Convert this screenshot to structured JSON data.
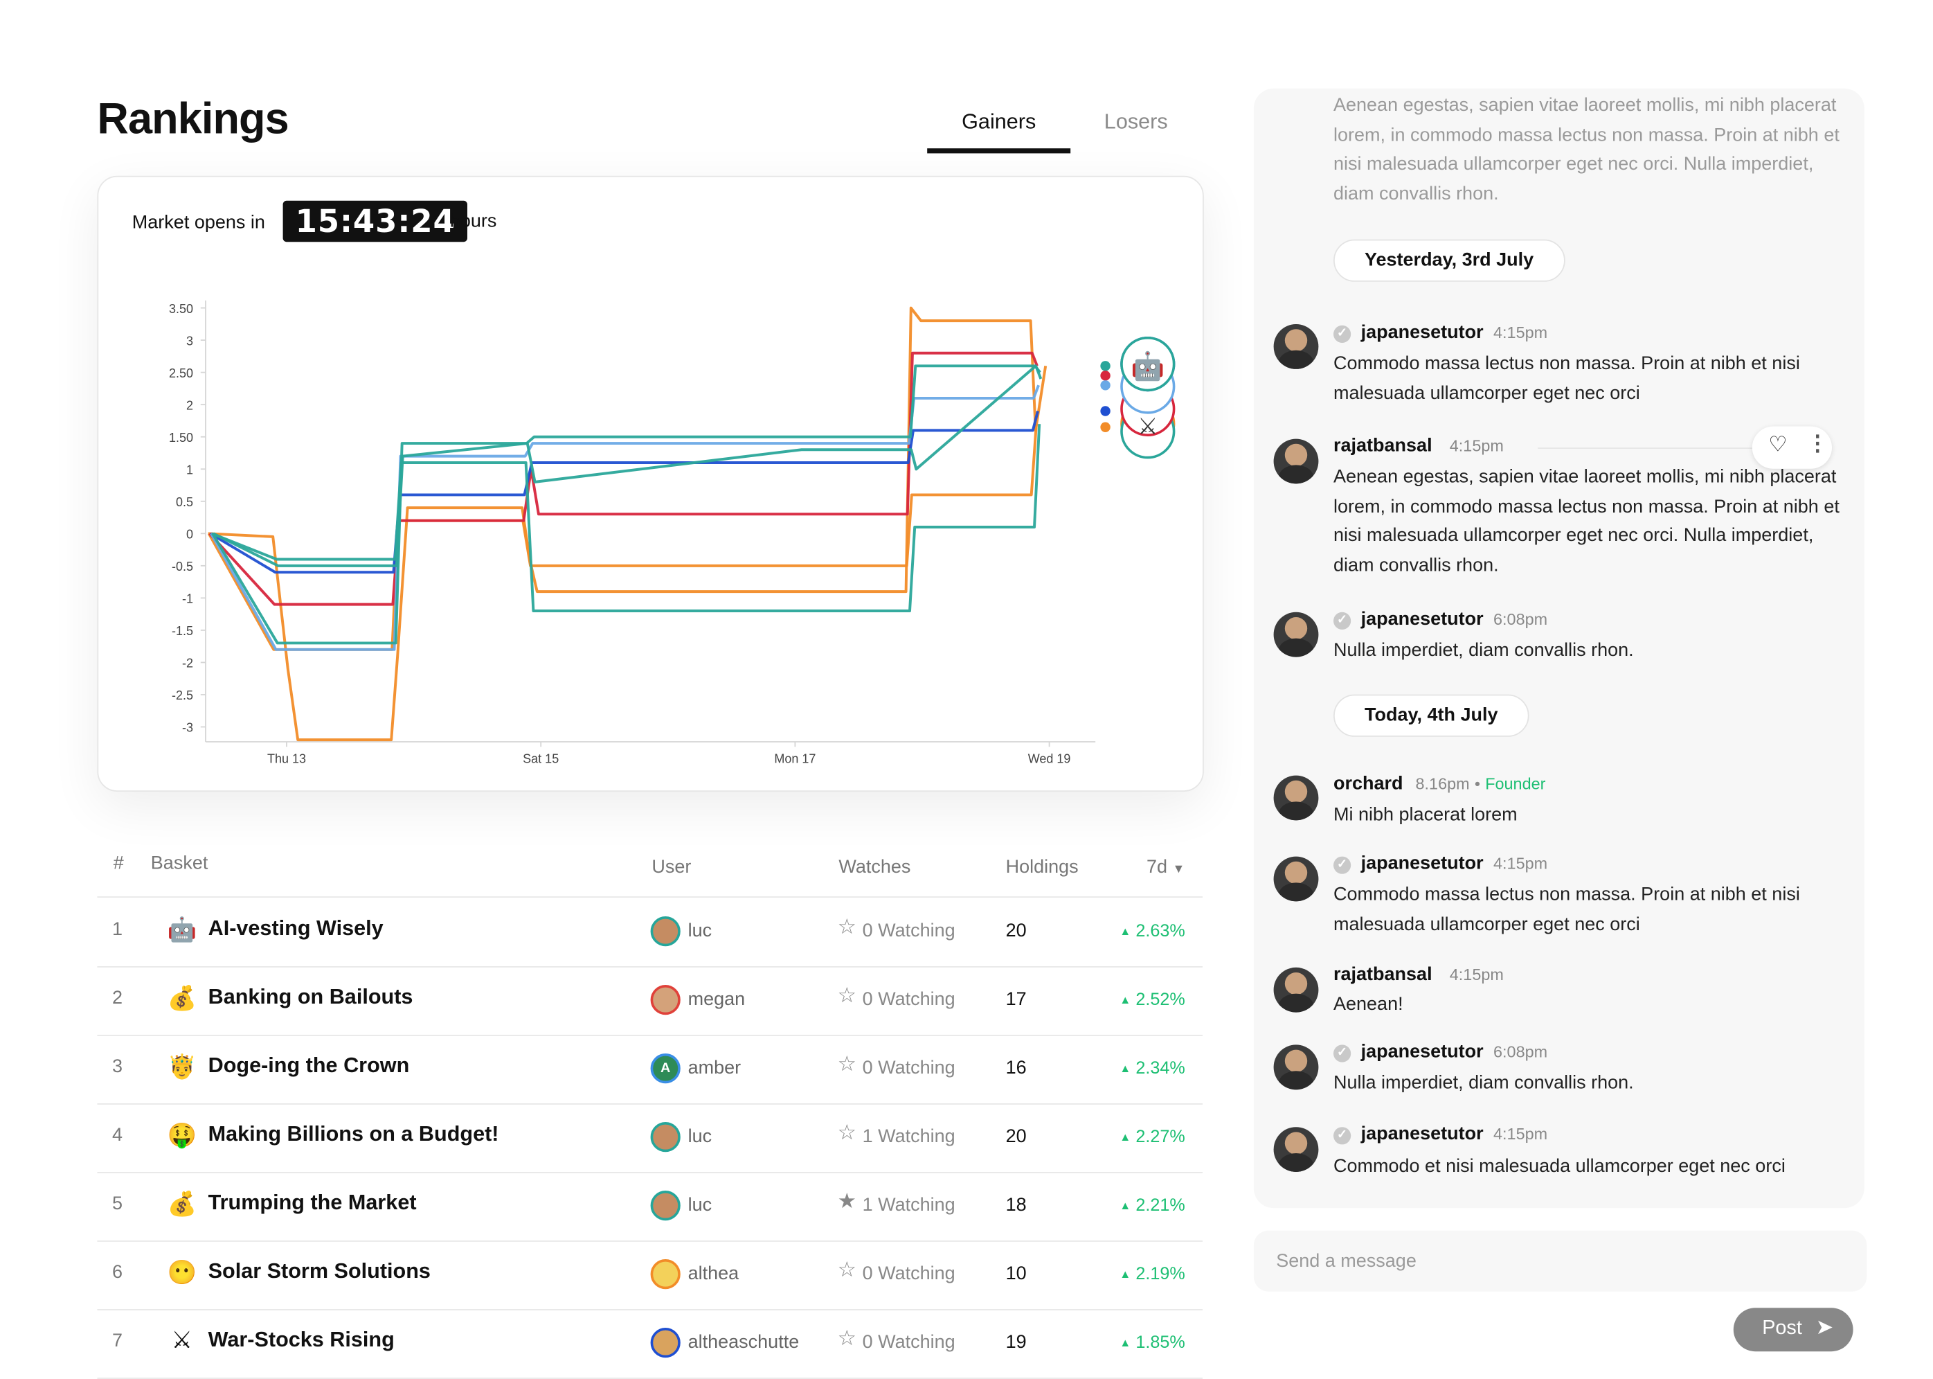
{
  "page": {
    "title": "Rankings"
  },
  "tabs": [
    {
      "label": "Gainers",
      "active": true
    },
    {
      "label": "Losers",
      "active": false
    }
  ],
  "market": {
    "label": "Market opens in",
    "timer": "15:43:24",
    "unit": "hours"
  },
  "chart_data": {
    "type": "line",
    "x_ticks": [
      "Thu 13",
      "Sat 15",
      "Mon 17",
      "Wed 19"
    ],
    "y_ticks": [
      "3.50",
      "3",
      "2.50",
      "2",
      "1.50",
      "1",
      "0.5",
      "0",
      "-0.5",
      "-1",
      "-1.5",
      "-2",
      "-2.5",
      "-3"
    ],
    "ylim": [
      -3,
      3.5
    ],
    "grid": false,
    "series": [
      {
        "color": "#f28c28",
        "points": [
          [
            "Thu 13",
            0
          ],
          [
            "Thu 13",
            -0.05
          ],
          [
            "Thu 13",
            -2.1
          ],
          [
            "Thu 13",
            -3.2
          ],
          [
            "Fri 14",
            -3.2
          ],
          [
            "Fri 14",
            -1.9
          ],
          [
            "Fri 14",
            0.4
          ],
          [
            "Sat 15",
            0.4
          ],
          [
            "Sat 15",
            -0.4
          ],
          [
            "Sat 15",
            -0.9
          ],
          [
            "Mon 17",
            -0.9
          ],
          [
            "Tue 18",
            -0.9
          ],
          [
            "Tue 18",
            3.5
          ],
          [
            "Tue 18",
            3.3
          ],
          [
            "Wed 19",
            3.3
          ],
          [
            "Wed 19",
            1.6
          ],
          [
            "Wed 19",
            2.6
          ]
        ]
      },
      {
        "color": "#f28c28",
        "points": [
          [
            "Thu 13",
            0
          ],
          [
            "Thu 13",
            -1.8
          ],
          [
            "Fri 14",
            -1.8
          ],
          [
            "Fri 14",
            0.2
          ],
          [
            "Sat 15",
            0.2
          ],
          [
            "Sat 15",
            -0.5
          ],
          [
            "Mon 17",
            -0.5
          ],
          [
            "Tue 18",
            -0.5
          ],
          [
            "Tue 18",
            0.6
          ],
          [
            "Wed 19",
            0.6
          ],
          [
            "Wed 19",
            1.7
          ]
        ]
      },
      {
        "color": "#d7263d",
        "points": [
          [
            "Thu 13",
            0
          ],
          [
            "Thu 13",
            -1.1
          ],
          [
            "Fri 14",
            -1.1
          ],
          [
            "Fri 14",
            0.2
          ],
          [
            "Sat 15",
            0.2
          ],
          [
            "Sat 15",
            1.0
          ],
          [
            "Sat 15",
            0.3
          ],
          [
            "Mon 17",
            0.3
          ],
          [
            "Tue 18",
            0.3
          ],
          [
            "Tue 18",
            2.8
          ],
          [
            "Wed 19",
            2.8
          ],
          [
            "Wed 19",
            2.6
          ]
        ]
      },
      {
        "color": "#1f4fd1",
        "points": [
          [
            "Thu 13",
            0
          ],
          [
            "Thu 13",
            -0.6
          ],
          [
            "Fri 14",
            -0.6
          ],
          [
            "Fri 14",
            0.6
          ],
          [
            "Sat 15",
            0.6
          ],
          [
            "Sat 15",
            1.1
          ],
          [
            "Mon 17",
            1.1
          ],
          [
            "Tue 18",
            1.1
          ],
          [
            "Tue 18",
            1.6
          ],
          [
            "Wed 19",
            1.6
          ],
          [
            "Wed 19",
            1.9
          ]
        ]
      },
      {
        "color": "#6aa9e6",
        "points": [
          [
            "Thu 13",
            0
          ],
          [
            "Thu 13",
            -1.8
          ],
          [
            "Fri 14",
            -1.8
          ],
          [
            "Fri 14",
            1.2
          ],
          [
            "Sat 15",
            1.2
          ],
          [
            "Sat 15",
            1.4
          ],
          [
            "Mon 17",
            1.4
          ],
          [
            "Tue 18",
            1.4
          ],
          [
            "Tue 18",
            2.1
          ],
          [
            "Wed 19",
            2.1
          ],
          [
            "Wed 19",
            2.3
          ]
        ]
      },
      {
        "color": "#2aa69a",
        "points": [
          [
            "Thu 13",
            0
          ],
          [
            "Thu 13",
            -0.4
          ],
          [
            "Fri 14",
            -0.4
          ],
          [
            "Fri 14",
            1.1
          ],
          [
            "Sat 15",
            1.1
          ],
          [
            "Sat 15",
            -1.2
          ],
          [
            "Mon 17",
            -1.2
          ],
          [
            "Tue 18",
            -1.2
          ],
          [
            "Tue 18",
            0.1
          ],
          [
            "Wed 19",
            0.1
          ],
          [
            "Wed 19",
            1.7
          ]
        ]
      },
      {
        "color": "#2aa69a",
        "points": [
          [
            "Thu 13",
            0
          ],
          [
            "Thu 13",
            -1.7
          ],
          [
            "Fri 14",
            -1.7
          ],
          [
            "Fri 14",
            1.4
          ],
          [
            "Sat 15",
            1.4
          ],
          [
            "Sat 15",
            1.5
          ],
          [
            "Mon 17",
            1.5
          ],
          [
            "Tue 18",
            1.5
          ],
          [
            "Tue 18",
            2.6
          ],
          [
            "Wed 19",
            2.6
          ],
          [
            "Wed 19",
            2.5
          ]
        ]
      },
      {
        "color": "#2aa69a",
        "points": [
          [
            "Thu 13",
            0
          ],
          [
            "Thu 13",
            -0.5
          ],
          [
            "Fri 14",
            -0.5
          ],
          [
            "Fri 14",
            1.2
          ],
          [
            "Sat 15",
            1.4
          ],
          [
            "Sat 15",
            0.8
          ],
          [
            "Mon 17",
            1.3
          ],
          [
            "Tue 18",
            1.3
          ],
          [
            "Tue 18",
            1.0
          ],
          [
            "Wed 19",
            2.6
          ],
          [
            "Wed 19",
            2.4
          ]
        ]
      }
    ],
    "end_markers": [
      "robot-emoji",
      "robot-emoji",
      "robot-emoji",
      "robot-emoji",
      "crossed-swords-emoji"
    ]
  },
  "table": {
    "headers": {
      "rank": "#",
      "basket": "Basket",
      "user": "User",
      "watches": "Watches",
      "holdings": "Holdings",
      "period": "7d"
    },
    "rows": [
      {
        "rank": "1",
        "emoji": "🤖",
        "name": "AI-vesting Wisely",
        "user": "luc",
        "avatar_color": "#c58c62",
        "avatar_border": "#26a69a",
        "watching": "0 Watching",
        "starred": false,
        "holdings": "20",
        "change": "2.63%"
      },
      {
        "rank": "2",
        "emoji": "💰",
        "name": "Banking on Bailouts",
        "user": "megan",
        "avatar_color": "#d4a27a",
        "avatar_border": "#e0413a",
        "watching": "0 Watching",
        "starred": false,
        "holdings": "17",
        "change": "2.52%"
      },
      {
        "rank": "3",
        "emoji": "🤴",
        "name": "Doge-ing the Crown",
        "user": "amber",
        "avatar_color": "#2e8b57",
        "avatar_border": "#3a8ee6",
        "avatar_letter": "A",
        "watching": "0 Watching",
        "starred": false,
        "holdings": "16",
        "change": "2.34%"
      },
      {
        "rank": "4",
        "emoji": "🤑",
        "name": "Making Billions on a Budget!",
        "user": "luc",
        "avatar_color": "#c58c62",
        "avatar_border": "#26a69a",
        "watching": "1 Watching",
        "starred": false,
        "holdings": "20",
        "change": "2.27%"
      },
      {
        "rank": "5",
        "emoji": "💰",
        "name": "Trumping the Market",
        "user": "luc",
        "avatar_color": "#c58c62",
        "avatar_border": "#26a69a",
        "watching": "1 Watching",
        "starred": true,
        "holdings": "18",
        "change": "2.21%"
      },
      {
        "rank": "6",
        "emoji": "😶",
        "name": "Solar Storm Solutions",
        "user": "althea",
        "avatar_color": "#f3d15a",
        "avatar_border": "#f28c28",
        "watching": "0 Watching",
        "starred": false,
        "holdings": "10",
        "change": "2.19%"
      },
      {
        "rank": "7",
        "emoji": "⚔",
        "name": "War-Stocks Rising",
        "user": "altheaschutte",
        "avatar_color": "#d9a35e",
        "avatar_border": "#1f4fd1",
        "watching": "0 Watching",
        "starred": false,
        "holdings": "19",
        "change": "1.85%"
      }
    ]
  },
  "chat": {
    "faded_text": "Aenean egestas, sapien vitae laoreet mollis, mi nibh placerat lorem, in commodo massa lectus non massa. Proin at nibh et nisi malesuada ullamcorper eget nec orci. Nulla imperdiet, diam convallis rhon.",
    "day1": "Yesterday, 3rd July",
    "day2": "Today, 4th July",
    "messages": [
      {
        "user": "japanesetutor",
        "verified": true,
        "time": "4:15pm",
        "text": "Commodo massa lectus non massa. Proin at nibh et nisi malesuada ullamcorper eget nec orci"
      },
      {
        "user": "rajatbansal",
        "verified": false,
        "time": "4:15pm",
        "text": "Aenean egestas, sapien vitae laoreet mollis, mi nibh placerat lorem, in commodo massa lectus non massa. Proin at nibh et nisi malesuada ullamcorper eget nec orci. Nulla imperdiet, diam convallis rhon."
      },
      {
        "user": "japanesetutor",
        "verified": true,
        "time": "6:08pm",
        "text": "Nulla imperdiet, diam convallis rhon."
      },
      {
        "user": "orchard",
        "verified": false,
        "time": "8.16pm",
        "role": "Founder",
        "text": "Mi nibh placerat lorem"
      },
      {
        "user": "japanesetutor",
        "verified": true,
        "time": "4:15pm",
        "text": "Commodo massa lectus non massa. Proin at nibh et nisi malesuada ullamcorper eget nec orci"
      },
      {
        "user": "rajatbansal",
        "verified": false,
        "time": "4:15pm",
        "text": "Aenean!"
      },
      {
        "user": "japanesetutor",
        "verified": true,
        "time": "6:08pm",
        "text": "Nulla imperdiet, diam convallis rhon."
      },
      {
        "user": "japanesetutor",
        "verified": true,
        "time": "4:15pm",
        "text": "Commodo et nisi malesuada ullamcorper eget nec orci"
      }
    ],
    "input_placeholder": "Send a message",
    "post_label": "Post"
  }
}
